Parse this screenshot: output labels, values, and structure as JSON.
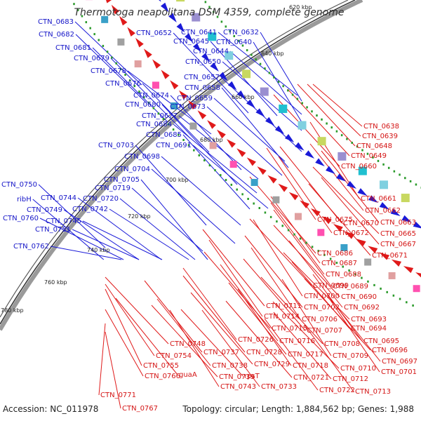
{
  "title": "Thermotoga neapolitana DSM 4359, complete genome",
  "footer": {
    "accession": "Accession: NC_011978",
    "summary": "Topology: circular; Length: 1,884,562 bp; Genes: 1,988"
  },
  "colors": {
    "forward_genes": "#1a1ad8",
    "reverse_genes": "#e01a1a",
    "backbone": "#888888",
    "gc_dots": "#2a9a2a"
  },
  "ticks": [
    "620 kbp",
    "640 kbp",
    "660 kbp",
    "680 kbp",
    "700 kbp",
    "720 kbp",
    "740 kbp",
    "760 kbp",
    "780 kbp"
  ],
  "labels_forward": [
    "CTN_0683",
    "CTN_0682",
    "CTN_0681",
    "CTN_0679",
    "CTN_0678",
    "CTN_0676",
    "CTN_0674",
    "CTN_0680",
    "CTN_0677",
    "CTN_0684",
    "CTN_0685",
    "CTN_0703",
    "CTN_0691",
    "CTN_0698",
    "CTN_0704",
    "CTN_0705",
    "CTN_0719",
    "CTN_0720",
    "CTN_0742",
    "CTN_0744",
    "CTN_0750",
    "ribH",
    "CTN_0749",
    "CTN_0745",
    "CTN_0760",
    "CTN_0751",
    "CTN_0762",
    "CTN_0652",
    "CTN_0641",
    "CTN_0632",
    "CTN_0645",
    "CTN_0640",
    "CTN_0644",
    "CTN_0650",
    "CTN_0657",
    "CTN_0658",
    "CTN_0659",
    "CTN_0673"
  ],
  "labels_reverse": [
    "CTN_0638",
    "CTN_0639",
    "CTN_0648",
    "CTN_0649",
    "CTN_0660",
    "CTN_0661",
    "CTN_0662",
    "CTN_0663",
    "CTN_0670",
    "CTN_0665",
    "CTN_0675",
    "CTN_0672",
    "CTN_0667",
    "CTN_0671",
    "CTN_0686",
    "CTN_0687",
    "CTN_0688",
    "CTN_0689",
    "CTN_0699",
    "CTN_0690",
    "CTN_0700",
    "CTN_0692",
    "CTN_0702",
    "CTN_0711",
    "CTN_0693",
    "CTN_0706",
    "CTN_0714",
    "CTN_0694",
    "CTN_0707",
    "CTN_0715",
    "CTN_0695",
    "CTN_0726",
    "CTN_0716",
    "CTN_0708",
    "CTN_0696",
    "CTN_0709",
    "CTN_0697",
    "CTN_0717",
    "CTN_0728",
    "CTN_0710",
    "CTN_0701",
    "CTN_0718",
    "CTN_0712",
    "CTN_0729",
    "CTN_0721",
    "CTN_0713",
    "CTN_0722",
    "CTN_0733",
    "rpsT",
    "CTN_0739",
    "CTN_0743",
    "CTN_0738",
    "CTN_0737",
    "guaA",
    "CTN_0748",
    "CTN_0754",
    "CTN_0755",
    "CTN_0766",
    "CTN_0771",
    "CTN_0767"
  ]
}
